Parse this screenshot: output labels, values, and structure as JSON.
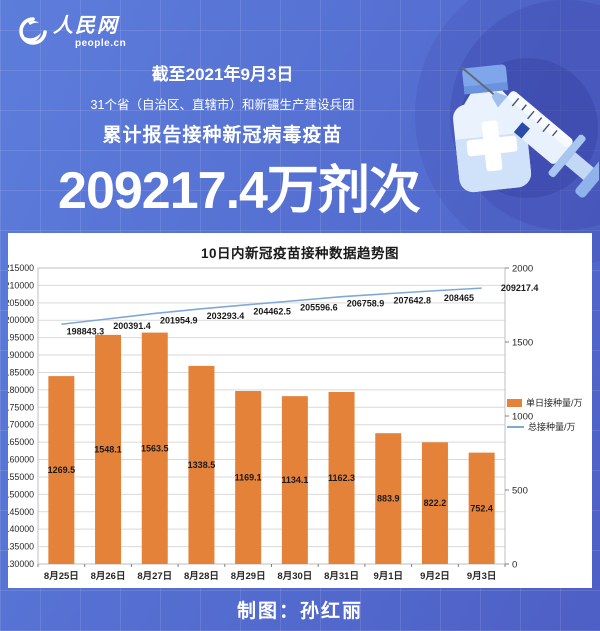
{
  "logo": {
    "cn": "人民网",
    "domain": "people.cn"
  },
  "header": {
    "date_line": "截至2021年9月3日",
    "region_line": "31个省（自治区、直辖市）和新疆生产建设兵团",
    "title_line": "累计报告接种新冠病毒疫苗",
    "big_number": "209217.4万剂次"
  },
  "chart_data": {
    "type": "bar",
    "title": "10日内新冠疫苗接种数据趋势图",
    "categories": [
      "8月25日",
      "8月26日",
      "8月27日",
      "8月28日",
      "8月29日",
      "8月30日",
      "8月31日",
      "9月1日",
      "9月2日",
      "9月3日"
    ],
    "series": [
      {
        "name": "单日接种量/万",
        "type": "bar",
        "axis": "right",
        "color": "#E5823A",
        "values": [
          1269.5,
          1548.1,
          1563.5,
          1338.5,
          1169.1,
          1134.1,
          1162.3,
          883.9,
          822.2,
          752.4
        ]
      },
      {
        "name": "总接种量/万",
        "type": "line",
        "axis": "left",
        "color": "#7FA8D9",
        "values": [
          198843.3,
          200391.4,
          201954.9,
          203293.4,
          204462.5,
          205596.6,
          206758.9,
          207642.8,
          208465,
          209217.4
        ]
      }
    ],
    "left_axis": {
      "min": 130000,
      "max": 215000,
      "step": 5000
    },
    "right_axis": {
      "min": 0,
      "max": 2000,
      "step": 500
    },
    "grid": true,
    "legend_position": "right"
  },
  "footer": {
    "credit": "制图：孙红丽"
  },
  "colors": {
    "bar": "#E5823A",
    "line": "#7FA8D9",
    "gridline": "#D9D9D9",
    "plot_border": "#BFBFBF",
    "axis_text": "#262626"
  }
}
